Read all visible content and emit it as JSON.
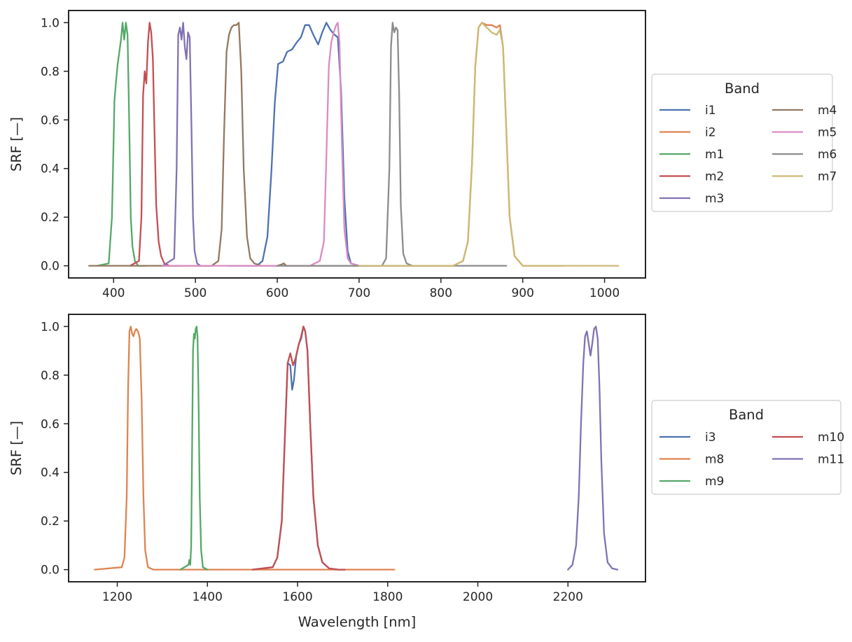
{
  "chart_data": [
    {
      "type": "line",
      "xlabel": "",
      "ylabel": "SRF [—]",
      "xlim": [
        345,
        1050
      ],
      "ylim": [
        -0.05,
        1.05
      ],
      "xticks": [
        400,
        500,
        600,
        700,
        800,
        900,
        1000
      ],
      "xtick_labels": [
        "400",
        "500",
        "600",
        "700",
        "800",
        "900",
        "1000"
      ],
      "yticks": [
        0.0,
        0.2,
        0.4,
        0.6,
        0.8,
        1.0
      ],
      "ytick_labels": [
        "0.0",
        "0.2",
        "0.4",
        "0.6",
        "0.8",
        "1.0"
      ],
      "grid": false,
      "legend": {
        "title": "Band",
        "placement": "outside-right",
        "columns": 2
      },
      "series": [
        {
          "name": "i1",
          "color": "#4c72b0",
          "x": [
            540,
            575,
            582,
            588,
            593,
            597,
            601,
            607,
            612,
            618,
            624,
            629,
            634,
            639,
            644,
            650,
            655,
            660,
            665,
            670,
            674,
            678,
            682,
            686,
            690,
            700,
            720
          ],
          "y": [
            0,
            0,
            0.02,
            0.12,
            0.4,
            0.67,
            0.83,
            0.84,
            0.88,
            0.89,
            0.92,
            0.94,
            0.99,
            0.99,
            0.95,
            0.91,
            0.96,
            1.0,
            0.97,
            0.95,
            0.94,
            0.72,
            0.28,
            0.06,
            0.01,
            0,
            0
          ]
        },
        {
          "name": "i2",
          "color": "#dd8452",
          "x": [
            780,
            815,
            827,
            833,
            838,
            842,
            846,
            850,
            856,
            862,
            868,
            872,
            876,
            880,
            884,
            890,
            900,
            950
          ],
          "y": [
            0,
            0,
            0.02,
            0.1,
            0.42,
            0.82,
            0.98,
            1.0,
            0.99,
            0.99,
            0.98,
            0.99,
            0.9,
            0.55,
            0.2,
            0.04,
            0,
            0
          ]
        },
        {
          "name": "m1",
          "color": "#55a868",
          "x": [
            380,
            394,
            398,
            401,
            403,
            405,
            407,
            409,
            411,
            413,
            415,
            417,
            419,
            421,
            423,
            426,
            430,
            440
          ],
          "y": [
            0,
            0.01,
            0.2,
            0.68,
            0.76,
            0.83,
            0.88,
            0.93,
            1.0,
            0.93,
            1.0,
            0.95,
            0.6,
            0.2,
            0.08,
            0.02,
            0,
            0
          ]
        },
        {
          "name": "m2",
          "color": "#c44e52",
          "x": [
            420,
            431,
            434,
            436,
            438,
            440,
            442,
            444,
            446,
            448,
            450,
            452,
            455,
            458,
            462,
            468,
            480
          ],
          "y": [
            0,
            0.02,
            0.2,
            0.7,
            0.8,
            0.75,
            0.92,
            1.0,
            0.96,
            0.85,
            0.55,
            0.25,
            0.1,
            0.04,
            0.01,
            0,
            0
          ]
        },
        {
          "name": "m3",
          "color": "#8172b3",
          "x": [
            460,
            474,
            477,
            479,
            481,
            483,
            485,
            487,
            489,
            491,
            493,
            495,
            497,
            499,
            502,
            506,
            520
          ],
          "y": [
            0,
            0.03,
            0.4,
            0.95,
            0.98,
            0.93,
            1.0,
            0.9,
            0.85,
            0.96,
            0.94,
            0.6,
            0.2,
            0.06,
            0.01,
            0,
            0
          ]
        },
        {
          "name": "m4",
          "color": "#937860",
          "x": [
            370,
            520,
            528,
            532,
            535,
            538,
            541,
            544,
            547,
            550,
            553,
            556,
            559,
            563,
            567,
            572,
            580,
            600,
            605,
            608,
            611,
            620,
            700,
            780
          ],
          "y": [
            0,
            0,
            0.02,
            0.15,
            0.55,
            0.88,
            0.95,
            0.98,
            0.99,
            0.99,
            1.0,
            0.8,
            0.4,
            0.12,
            0.03,
            0.01,
            0,
            0,
            0.005,
            0.01,
            0,
            0,
            0,
            0
          ]
        },
        {
          "name": "m5",
          "color": "#da8bc3",
          "x": [
            460,
            640,
            652,
            657,
            660,
            663,
            666,
            669,
            672,
            674,
            676,
            679,
            682,
            686,
            690,
            700,
            720
          ],
          "y": [
            0,
            0,
            0.02,
            0.1,
            0.45,
            0.82,
            0.92,
            0.96,
            0.99,
            1.0,
            0.92,
            0.5,
            0.15,
            0.03,
            0.01,
            0,
            0
          ]
        },
        {
          "name": "m6",
          "color": "#8c8c8c",
          "x": [
            600,
            728,
            733,
            737,
            739,
            741,
            743,
            745,
            747,
            749,
            751,
            754,
            758,
            765,
            880
          ],
          "y": [
            0,
            0,
            0.03,
            0.4,
            0.9,
            1.0,
            0.96,
            0.98,
            0.97,
            0.7,
            0.25,
            0.05,
            0.01,
            0,
            0
          ]
        },
        {
          "name": "m7",
          "color": "#ccb974",
          "x": [
            700,
            815,
            827,
            833,
            838,
            842,
            846,
            850,
            856,
            862,
            868,
            872,
            876,
            880,
            884,
            890,
            900,
            1017
          ],
          "y": [
            0,
            0,
            0.02,
            0.1,
            0.42,
            0.82,
            0.98,
            1.0,
            0.98,
            0.96,
            0.95,
            0.97,
            0.9,
            0.55,
            0.2,
            0.04,
            0,
            0
          ]
        }
      ]
    },
    {
      "type": "line",
      "xlabel": "Wavelength [nm]",
      "ylabel": "SRF [—]",
      "xlim": [
        1092,
        2372
      ],
      "ylim": [
        -0.05,
        1.05
      ],
      "xticks": [
        1200,
        1400,
        1600,
        1800,
        2000,
        2200
      ],
      "xtick_labels": [
        "1200",
        "1400",
        "1600",
        "1800",
        "2000",
        "2200"
      ],
      "yticks": [
        0.0,
        0.2,
        0.4,
        0.6,
        0.8,
        1.0
      ],
      "ytick_labels": [
        "0.0",
        "0.2",
        "0.4",
        "0.6",
        "0.8",
        "1.0"
      ],
      "grid": false,
      "legend": {
        "title": "Band",
        "placement": "outside-right",
        "columns": 2
      },
      "series": [
        {
          "name": "i3",
          "color": "#4c72b0",
          "x": [
            1500,
            1545,
            1555,
            1565,
            1572,
            1578,
            1584,
            1588,
            1592,
            1597,
            1603,
            1608,
            1613,
            1617,
            1622,
            1628,
            1635,
            1645,
            1655,
            1670,
            1690,
            1705
          ],
          "y": [
            0,
            0.01,
            0.05,
            0.2,
            0.55,
            0.85,
            0.84,
            0.74,
            0.78,
            0.88,
            0.93,
            0.95,
            1.0,
            0.98,
            0.9,
            0.6,
            0.3,
            0.1,
            0.03,
            0.005,
            0,
            0
          ]
        },
        {
          "name": "m8",
          "color": "#dd8452",
          "x": [
            1150,
            1210,
            1216,
            1221,
            1224,
            1227,
            1230,
            1233,
            1236,
            1239,
            1242,
            1246,
            1250,
            1254,
            1258,
            1262,
            1268,
            1280,
            1400,
            1600,
            1815
          ],
          "y": [
            0,
            0.01,
            0.05,
            0.3,
            0.75,
            0.98,
            1.0,
            0.97,
            0.96,
            0.98,
            0.99,
            0.98,
            0.95,
            0.7,
            0.3,
            0.08,
            0.01,
            0,
            0,
            0,
            0
          ]
        },
        {
          "name": "m9",
          "color": "#55a868",
          "x": [
            1340,
            1358,
            1360,
            1362,
            1364,
            1366,
            1368,
            1370,
            1372,
            1374,
            1376,
            1378,
            1380,
            1383,
            1386,
            1390,
            1400
          ],
          "y": [
            0,
            0.02,
            0.04,
            0.02,
            0.1,
            0.5,
            0.9,
            0.97,
            0.95,
            0.99,
            1.0,
            0.96,
            0.75,
            0.3,
            0.08,
            0.01,
            0
          ]
        },
        {
          "name": "m10",
          "color": "#c44e52",
          "x": [
            1500,
            1545,
            1555,
            1565,
            1572,
            1578,
            1584,
            1590,
            1596,
            1602,
            1608,
            1613,
            1617,
            1622,
            1628,
            1635,
            1645,
            1655,
            1670,
            1690,
            1705
          ],
          "y": [
            0,
            0.01,
            0.05,
            0.2,
            0.55,
            0.85,
            0.89,
            0.84,
            0.87,
            0.92,
            0.96,
            1.0,
            0.98,
            0.9,
            0.6,
            0.3,
            0.1,
            0.03,
            0.005,
            0,
            0
          ]
        },
        {
          "name": "m11",
          "color": "#8172b3",
          "x": [
            2200,
            2210,
            2218,
            2224,
            2229,
            2234,
            2238,
            2242,
            2246,
            2250,
            2254,
            2258,
            2262,
            2266,
            2270,
            2274,
            2280,
            2288,
            2298,
            2310
          ],
          "y": [
            0,
            0.02,
            0.1,
            0.3,
            0.6,
            0.85,
            0.96,
            0.98,
            0.93,
            0.88,
            0.93,
            0.99,
            1.0,
            0.95,
            0.75,
            0.45,
            0.15,
            0.03,
            0.005,
            0
          ]
        }
      ]
    }
  ]
}
